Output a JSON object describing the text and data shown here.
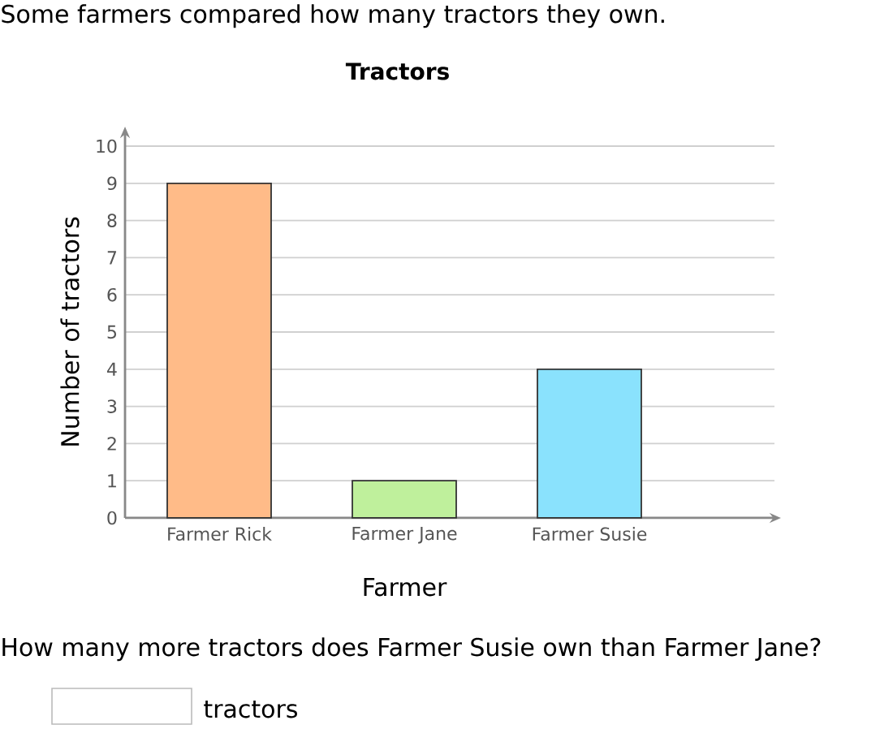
{
  "chart_data": {
    "type": "bar",
    "title": "Tractors",
    "xlabel": "Farmer",
    "ylabel": "Number of tractors",
    "categories": [
      "Farmer Rick",
      "Farmer Jane",
      "Farmer Susie"
    ],
    "values": [
      9,
      1,
      4
    ],
    "colors": [
      "#ffbb88",
      "#bff09c",
      "#8ae2fd"
    ],
    "ylim": [
      0,
      10
    ],
    "yticks": [
      0,
      1,
      2,
      3,
      4,
      5,
      6,
      7,
      8,
      9,
      10
    ],
    "grid": "y",
    "annotations": [
      "Some farmers compared how many tractors they own.",
      "How many more tractors does Farmer Susie own than Farmer Jane?",
      "tractors"
    ]
  }
}
